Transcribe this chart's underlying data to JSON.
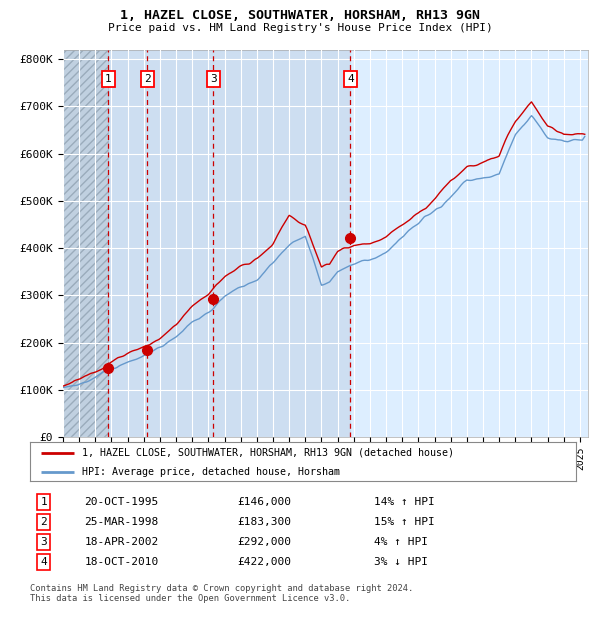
{
  "title1": "1, HAZEL CLOSE, SOUTHWATER, HORSHAM, RH13 9GN",
  "title2": "Price paid vs. HM Land Registry's House Price Index (HPI)",
  "ylim": [
    0,
    820000
  ],
  "yticks": [
    0,
    100000,
    200000,
    300000,
    400000,
    500000,
    600000,
    700000,
    800000
  ],
  "ytick_labels": [
    "£0",
    "£100K",
    "£200K",
    "£300K",
    "£400K",
    "£500K",
    "£600K",
    "£700K",
    "£800K"
  ],
  "hpi_color": "#6699cc",
  "price_color": "#cc0000",
  "bg_color": "#ddeeff",
  "sale_prices": [
    146000,
    183300,
    292000,
    422000
  ],
  "sale_labels": [
    "1",
    "2",
    "3",
    "4"
  ],
  "legend_entries": [
    "1, HAZEL CLOSE, SOUTHWATER, HORSHAM, RH13 9GN (detached house)",
    "HPI: Average price, detached house, Horsham"
  ],
  "table_data": [
    [
      "1",
      "20-OCT-1995",
      "£146,000",
      "14% ↑ HPI"
    ],
    [
      "2",
      "25-MAR-1998",
      "£183,300",
      "15% ↑ HPI"
    ],
    [
      "3",
      "18-APR-2002",
      "£292,000",
      "4% ↑ HPI"
    ],
    [
      "4",
      "18-OCT-2010",
      "£422,000",
      "3% ↓ HPI"
    ]
  ],
  "footnote": "Contains HM Land Registry data © Crown copyright and database right 2024.\nThis data is licensed under the Open Government Licence v3.0.",
  "xstart": 1993.0,
  "xend": 2025.5,
  "hpi_key_years": [
    1993,
    1994,
    1995,
    1996,
    1997,
    1998,
    1999,
    2000,
    2001,
    2002,
    2003,
    2004,
    2005,
    2006,
    2007,
    2008,
    2009,
    2009.5,
    2010,
    2011,
    2012,
    2013,
    2014,
    2015,
    2016,
    2017,
    2018,
    2019,
    2020,
    2021,
    2022,
    2023,
    2024,
    2025.3
  ],
  "hpi_key_vals": [
    105000,
    115000,
    128000,
    147000,
    163000,
    178000,
    195000,
    218000,
    255000,
    278000,
    318000,
    340000,
    360000,
    390000,
    425000,
    450000,
    348000,
    355000,
    378000,
    398000,
    405000,
    420000,
    445000,
    470000,
    500000,
    530000,
    565000,
    572000,
    575000,
    660000,
    700000,
    660000,
    648000,
    645000
  ],
  "price_key_years": [
    1993,
    1994,
    1995,
    1996,
    1997,
    1998,
    1999,
    2000,
    2001,
    2002,
    2003,
    2004,
    2005,
    2006,
    2007,
    2008,
    2009,
    2009.5,
    2010,
    2011,
    2012,
    2013,
    2014,
    2015,
    2016,
    2017,
    2018,
    2019,
    2020,
    2021,
    2022,
    2023,
    2024,
    2025.3
  ],
  "price_key_vals": [
    108000,
    120000,
    133000,
    153000,
    170000,
    185000,
    204000,
    228000,
    265000,
    292000,
    330000,
    352000,
    373000,
    403000,
    455000,
    438000,
    352000,
    358000,
    388000,
    408000,
    415000,
    432000,
    458000,
    482000,
    515000,
    550000,
    575000,
    582000,
    595000,
    668000,
    712000,
    665000,
    645000,
    640000
  ]
}
